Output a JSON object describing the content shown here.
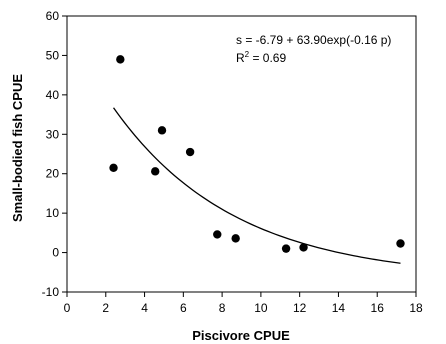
{
  "chart_data": {
    "type": "scatter",
    "title": "",
    "xlabel": "Piscivore CPUE",
    "ylabel": "Small-bodied fish CPUE",
    "xlim": [
      0,
      18
    ],
    "ylim": [
      -10,
      60
    ],
    "xticks": [
      0,
      2,
      4,
      6,
      8,
      10,
      12,
      14,
      16,
      18
    ],
    "yticks": [
      -10,
      0,
      10,
      20,
      30,
      40,
      50,
      60
    ],
    "grid": false,
    "legend": "none",
    "points": [
      {
        "x": 2.4,
        "y": 21.5
      },
      {
        "x": 2.75,
        "y": 49.0
      },
      {
        "x": 4.55,
        "y": 20.6
      },
      {
        "x": 4.9,
        "y": 31.0
      },
      {
        "x": 6.35,
        "y": 25.5
      },
      {
        "x": 7.75,
        "y": 4.6
      },
      {
        "x": 8.7,
        "y": 3.6
      },
      {
        "x": 11.3,
        "y": 1.0
      },
      {
        "x": 12.2,
        "y": 1.3
      },
      {
        "x": 17.2,
        "y": 2.3
      }
    ],
    "fit": {
      "equation": "s = -6.79 + 63.90exp(-0.16 p)",
      "r2_prefix": "R",
      "r2_sup": "2",
      "r2_value": " = 0.69",
      "a": -6.79,
      "b": 63.9,
      "k": -0.16,
      "x_range": [
        2.4,
        17.2
      ]
    },
    "colors": {
      "marker": "#000000",
      "line": "#000000",
      "axis": "#000000"
    }
  }
}
